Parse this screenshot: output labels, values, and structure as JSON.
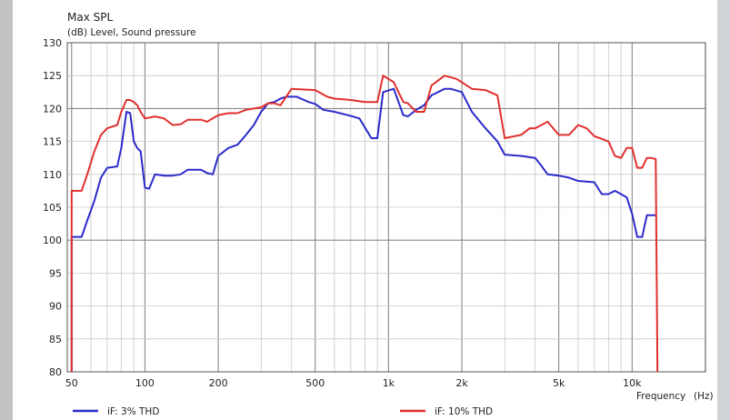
{
  "chart_data": {
    "type": "line",
    "title": "Max SPL",
    "ylabel": "(dB)  Level, Sound pressure",
    "xlabel": "Frequency",
    "xunit": "(Hz)",
    "xscale": "log",
    "xlim": [
      48,
      20000
    ],
    "ylim": [
      80,
      130
    ],
    "yticks": [
      80,
      85,
      90,
      95,
      100,
      105,
      110,
      115,
      120,
      125,
      130
    ],
    "xtick_labels": [
      {
        "value": 50,
        "label": "50"
      },
      {
        "value": 100,
        "label": "100"
      },
      {
        "value": 200,
        "label": "200"
      },
      {
        "value": 500,
        "label": "500"
      },
      {
        "value": 1000,
        "label": "1k"
      },
      {
        "value": 2000,
        "label": "2k"
      },
      {
        "value": 5000,
        "label": "5k"
      },
      {
        "value": 10000,
        "label": "10k"
      }
    ],
    "grid": true,
    "legend_position": "bottom",
    "series": [
      {
        "name": "iF: 3% THD",
        "color": "#2a2acc",
        "points": [
          [
            50,
            80
          ],
          [
            50,
            100.5
          ],
          [
            55,
            100.5
          ],
          [
            58,
            103
          ],
          [
            62,
            106
          ],
          [
            66,
            109.5
          ],
          [
            70,
            111
          ],
          [
            77,
            111.2
          ],
          [
            80,
            114
          ],
          [
            84,
            119.5
          ],
          [
            87,
            119.3
          ],
          [
            90,
            115
          ],
          [
            93,
            114
          ],
          [
            96,
            113.5
          ],
          [
            100,
            108
          ],
          [
            104,
            107.8
          ],
          [
            110,
            110
          ],
          [
            120,
            109.8
          ],
          [
            130,
            109.8
          ],
          [
            140,
            110
          ],
          [
            150,
            110.7
          ],
          [
            170,
            110.7
          ],
          [
            180,
            110.2
          ],
          [
            190,
            110
          ],
          [
            200,
            112.8
          ],
          [
            220,
            114
          ],
          [
            240,
            114.5
          ],
          [
            260,
            116
          ],
          [
            280,
            117.5
          ],
          [
            300,
            119.5
          ],
          [
            320,
            120.8
          ],
          [
            340,
            121
          ],
          [
            360,
            121.5
          ],
          [
            380,
            121.8
          ],
          [
            420,
            121.8
          ],
          [
            470,
            121
          ],
          [
            500,
            120.7
          ],
          [
            540,
            119.8
          ],
          [
            600,
            119.5
          ],
          [
            680,
            119
          ],
          [
            760,
            118.5
          ],
          [
            850,
            115.5
          ],
          [
            900,
            115.5
          ],
          [
            950,
            122.5
          ],
          [
            1050,
            123
          ],
          [
            1150,
            119
          ],
          [
            1200,
            118.8
          ],
          [
            1300,
            119.8
          ],
          [
            1400,
            120.5
          ],
          [
            1500,
            122
          ],
          [
            1700,
            123
          ],
          [
            1800,
            123
          ],
          [
            2000,
            122.5
          ],
          [
            2200,
            119.5
          ],
          [
            2500,
            117
          ],
          [
            2800,
            115
          ],
          [
            3000,
            113
          ],
          [
            3500,
            112.8
          ],
          [
            4000,
            112.5
          ],
          [
            4200,
            111.5
          ],
          [
            4500,
            110
          ],
          [
            5000,
            109.8
          ],
          [
            5500,
            109.5
          ],
          [
            6000,
            109
          ],
          [
            7000,
            108.8
          ],
          [
            7500,
            107
          ],
          [
            8000,
            107
          ],
          [
            8500,
            107.5
          ],
          [
            9000,
            107
          ],
          [
            9500,
            106.5
          ],
          [
            10000,
            104
          ],
          [
            10500,
            100.5
          ],
          [
            11000,
            100.5
          ],
          [
            11500,
            103.8
          ],
          [
            12500,
            103.8
          ]
        ]
      },
      {
        "name": "iF: 10% THD",
        "color": "#e0302d",
        "points": [
          [
            50,
            80
          ],
          [
            50,
            107.5
          ],
          [
            55,
            107.5
          ],
          [
            58,
            110
          ],
          [
            62,
            113.5
          ],
          [
            66,
            116
          ],
          [
            70,
            117
          ],
          [
            77,
            117.5
          ],
          [
            80,
            119.5
          ],
          [
            84,
            121.3
          ],
          [
            87,
            121.3
          ],
          [
            90,
            121
          ],
          [
            93,
            120.5
          ],
          [
            96,
            119.5
          ],
          [
            100,
            118.5
          ],
          [
            110,
            118.8
          ],
          [
            120,
            118.5
          ],
          [
            130,
            117.5
          ],
          [
            140,
            117.6
          ],
          [
            150,
            118.3
          ],
          [
            170,
            118.3
          ],
          [
            180,
            118
          ],
          [
            200,
            119
          ],
          [
            220,
            119.3
          ],
          [
            240,
            119.3
          ],
          [
            260,
            119.8
          ],
          [
            280,
            120
          ],
          [
            300,
            120.2
          ],
          [
            320,
            120.8
          ],
          [
            340,
            120.8
          ],
          [
            360,
            120.5
          ],
          [
            400,
            123
          ],
          [
            500,
            122.8
          ],
          [
            560,
            121.8
          ],
          [
            600,
            121.5
          ],
          [
            700,
            121.3
          ],
          [
            800,
            121
          ],
          [
            900,
            121
          ],
          [
            950,
            125
          ],
          [
            1050,
            124
          ],
          [
            1150,
            121
          ],
          [
            1200,
            120.8
          ],
          [
            1300,
            119.5
          ],
          [
            1400,
            119.5
          ],
          [
            1500,
            123.5
          ],
          [
            1700,
            125
          ],
          [
            1900,
            124.5
          ],
          [
            2000,
            124
          ],
          [
            2200,
            123
          ],
          [
            2500,
            122.8
          ],
          [
            2800,
            122
          ],
          [
            3000,
            115.5
          ],
          [
            3500,
            116
          ],
          [
            3800,
            117
          ],
          [
            4000,
            117
          ],
          [
            4500,
            118
          ],
          [
            5000,
            116
          ],
          [
            5500,
            116
          ],
          [
            6000,
            117.5
          ],
          [
            6500,
            117
          ],
          [
            7000,
            115.8
          ],
          [
            8000,
            115
          ],
          [
            8500,
            112.8
          ],
          [
            9000,
            112.5
          ],
          [
            9500,
            114
          ],
          [
            10000,
            114
          ],
          [
            10500,
            111
          ],
          [
            11000,
            111
          ],
          [
            11500,
            112.5
          ],
          [
            12000,
            112.5
          ],
          [
            12500,
            112.3
          ],
          [
            12700,
            80
          ]
        ]
      }
    ]
  },
  "colors": {
    "grid": "#c8c8c8",
    "grid_major": "#8a8a8a",
    "axis": "#555555"
  }
}
